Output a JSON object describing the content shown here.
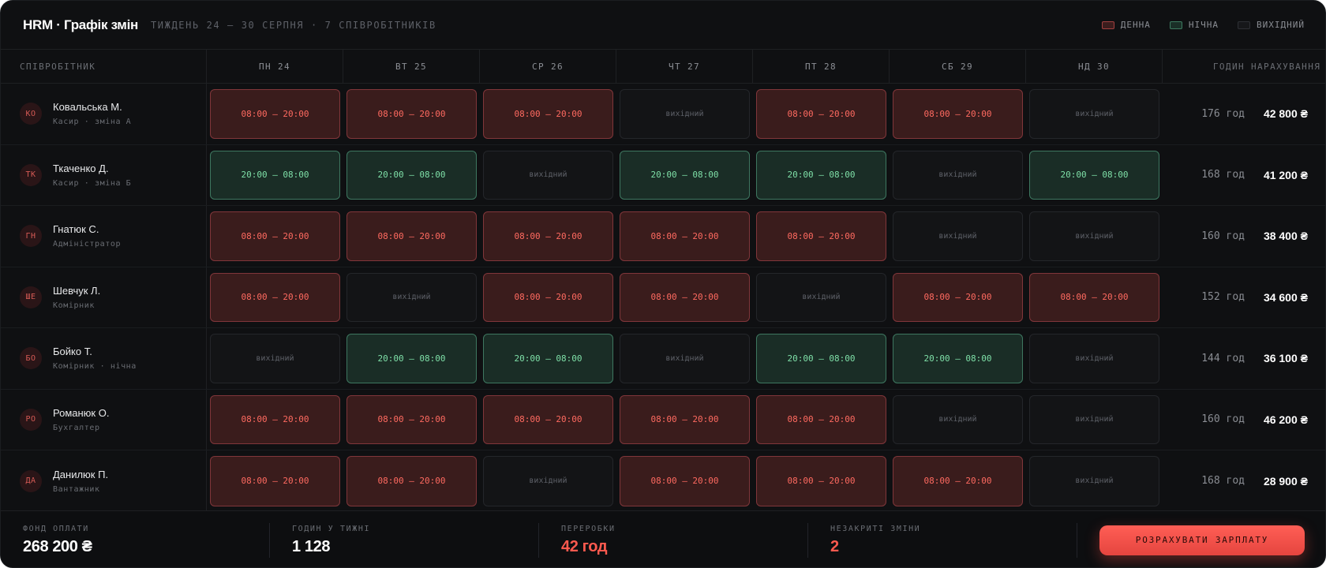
{
  "header": {
    "title": "HRM · Графік змін",
    "subtitle": "ТИЖДЕНЬ 24 — 30 СЕРПНЯ · 7 СПІВРОБІТНИКІВ",
    "legend": [
      {
        "label": "ДЕННА",
        "kind": "day",
        "color": "#a2403f"
      },
      {
        "label": "НІЧНА",
        "kind": "night",
        "color": "#3d7a60"
      },
      {
        "label": "ВИХІДНИЙ",
        "kind": "off",
        "color": "#2e3035"
      }
    ]
  },
  "columns": {
    "employee": "СПІВРОБІТНИК",
    "days": [
      "ПН 24",
      "ВТ 25",
      "СР 26",
      "ЧТ 27",
      "ПТ 28",
      "СБ 29",
      "НД 30"
    ],
    "hours": "ГОДИН",
    "pay": "НАРАХУВАННЯ"
  },
  "employees": [
    {
      "initials": "КО",
      "name": "Ковальська М.",
      "role": "Касир · зміна А",
      "shifts": [
        {
          "type": "day",
          "text": "08:00 — 20:00"
        },
        {
          "type": "day",
          "text": "08:00 — 20:00"
        },
        {
          "type": "day",
          "text": "08:00 — 20:00"
        },
        {
          "type": "off",
          "text": "вихідний"
        },
        {
          "type": "day",
          "text": "08:00 — 20:00"
        },
        {
          "type": "day",
          "text": "08:00 — 20:00"
        },
        {
          "type": "off",
          "text": "вихідний"
        }
      ],
      "hours": "176 год",
      "pay": "42 800 ₴"
    },
    {
      "initials": "ТК",
      "name": "Ткаченко Д.",
      "role": "Касир · зміна Б",
      "shifts": [
        {
          "type": "night",
          "text": "20:00 — 08:00"
        },
        {
          "type": "night",
          "text": "20:00 — 08:00"
        },
        {
          "type": "off",
          "text": "вихідний"
        },
        {
          "type": "night",
          "text": "20:00 — 08:00"
        },
        {
          "type": "night",
          "text": "20:00 — 08:00"
        },
        {
          "type": "off",
          "text": "вихідний"
        },
        {
          "type": "night",
          "text": "20:00 — 08:00"
        }
      ],
      "hours": "168 год",
      "pay": "41 200 ₴"
    },
    {
      "initials": "ГН",
      "name": "Гнатюк С.",
      "role": "Адміністратор",
      "shifts": [
        {
          "type": "day",
          "text": "08:00 — 20:00"
        },
        {
          "type": "day",
          "text": "08:00 — 20:00"
        },
        {
          "type": "day",
          "text": "08:00 — 20:00"
        },
        {
          "type": "day",
          "text": "08:00 — 20:00"
        },
        {
          "type": "day",
          "text": "08:00 — 20:00"
        },
        {
          "type": "off",
          "text": "вихідний"
        },
        {
          "type": "off",
          "text": "вихідний"
        }
      ],
      "hours": "160 год",
      "pay": "38 400 ₴"
    },
    {
      "initials": "ШЕ",
      "name": "Шевчук Л.",
      "role": "Комірник",
      "shifts": [
        {
          "type": "day",
          "text": "08:00 — 20:00"
        },
        {
          "type": "off",
          "text": "вихідний"
        },
        {
          "type": "day",
          "text": "08:00 — 20:00"
        },
        {
          "type": "day",
          "text": "08:00 — 20:00"
        },
        {
          "type": "off",
          "text": "вихідний"
        },
        {
          "type": "day",
          "text": "08:00 — 20:00"
        },
        {
          "type": "day",
          "text": "08:00 — 20:00"
        }
      ],
      "hours": "152 год",
      "pay": "34 600 ₴"
    },
    {
      "initials": "БО",
      "name": "Бойко Т.",
      "role": "Комірник · нічна",
      "shifts": [
        {
          "type": "off",
          "text": "вихідний"
        },
        {
          "type": "night",
          "text": "20:00 — 08:00"
        },
        {
          "type": "night",
          "text": "20:00 — 08:00"
        },
        {
          "type": "off",
          "text": "вихідний"
        },
        {
          "type": "night",
          "text": "20:00 — 08:00"
        },
        {
          "type": "night",
          "text": "20:00 — 08:00"
        },
        {
          "type": "off",
          "text": "вихідний"
        }
      ],
      "hours": "144 год",
      "pay": "36 100 ₴"
    },
    {
      "initials": "РО",
      "name": "Романюк О.",
      "role": "Бухгалтер",
      "shifts": [
        {
          "type": "day",
          "text": "08:00 — 20:00"
        },
        {
          "type": "day",
          "text": "08:00 — 20:00"
        },
        {
          "type": "day",
          "text": "08:00 — 20:00"
        },
        {
          "type": "day",
          "text": "08:00 — 20:00"
        },
        {
          "type": "day",
          "text": "08:00 — 20:00"
        },
        {
          "type": "off",
          "text": "вихідний"
        },
        {
          "type": "off",
          "text": "вихідний"
        }
      ],
      "hours": "160 год",
      "pay": "46 200 ₴"
    },
    {
      "initials": "ДА",
      "name": "Данилюк П.",
      "role": "Вантажник",
      "shifts": [
        {
          "type": "day",
          "text": "08:00 — 20:00"
        },
        {
          "type": "day",
          "text": "08:00 — 20:00"
        },
        {
          "type": "off",
          "text": "вихідний"
        },
        {
          "type": "day",
          "text": "08:00 — 20:00"
        },
        {
          "type": "day",
          "text": "08:00 — 20:00"
        },
        {
          "type": "day",
          "text": "08:00 — 20:00"
        },
        {
          "type": "off",
          "text": "вихідний"
        }
      ],
      "hours": "168 год",
      "pay": "28 900 ₴"
    }
  ],
  "footer": {
    "stats": [
      {
        "label": "ФОНД ОПЛАТИ",
        "value": "268 200 ₴",
        "accent": false
      },
      {
        "label": "ГОДИН У ТИЖНІ",
        "value": "1 128",
        "accent": false
      },
      {
        "label": "ПЕРЕРОБКИ",
        "value": "42 год",
        "accent": true
      },
      {
        "label": "НЕЗАКРИТІ ЗМІНИ",
        "value": "2",
        "accent": true
      }
    ],
    "button_label": "РОЗРАХУВАТИ ЗАРПЛАТУ"
  },
  "colors": {
    "accent": "#ff5a4f",
    "day": "#ff6a60",
    "night": "#7fe0a8",
    "background": "#0f1012"
  }
}
